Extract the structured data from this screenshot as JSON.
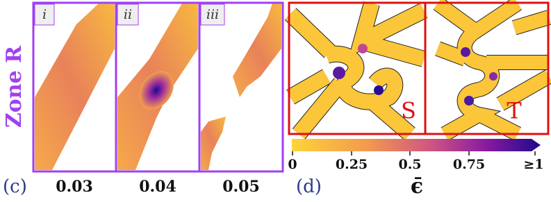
{
  "panel_c": {
    "label": "(c)",
    "zone": "Zone R",
    "frames": [
      {
        "tag": "i",
        "value": "0.03"
      },
      {
        "tag": "ii",
        "value": "0.04"
      },
      {
        "tag": "iii",
        "value": "0.05"
      }
    ]
  },
  "panel_d": {
    "label": "(d)",
    "frames": [
      "S",
      "T"
    ],
    "colorbar": {
      "ticks": [
        "0",
        "0.25",
        "0.5",
        "0.75",
        "≥1"
      ],
      "label": "ϵ̄"
    }
  }
}
